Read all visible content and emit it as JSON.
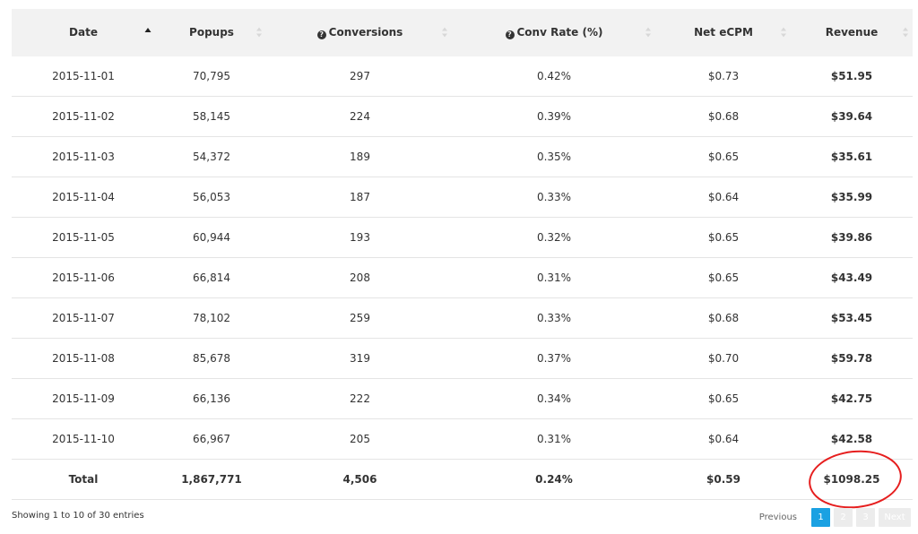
{
  "table": {
    "headers": [
      {
        "label": "Date",
        "help": false,
        "sort": "asc"
      },
      {
        "label": "Popups",
        "help": false,
        "sort": "both"
      },
      {
        "label": "Conversions",
        "help": true,
        "sort": "both"
      },
      {
        "label": "Conv Rate (%)",
        "help": true,
        "sort": "both"
      },
      {
        "label": "Net eCPM",
        "help": false,
        "sort": "both"
      },
      {
        "label": "Revenue",
        "help": false,
        "sort": "both"
      }
    ],
    "rows": [
      [
        "2015-11-01",
        "70,795",
        "297",
        "0.42%",
        "$0.73",
        "$51.95"
      ],
      [
        "2015-11-02",
        "58,145",
        "224",
        "0.39%",
        "$0.68",
        "$39.64"
      ],
      [
        "2015-11-03",
        "54,372",
        "189",
        "0.35%",
        "$0.65",
        "$35.61"
      ],
      [
        "2015-11-04",
        "56,053",
        "187",
        "0.33%",
        "$0.64",
        "$35.99"
      ],
      [
        "2015-11-05",
        "60,944",
        "193",
        "0.32%",
        "$0.65",
        "$39.86"
      ],
      [
        "2015-11-06",
        "66,814",
        "208",
        "0.31%",
        "$0.65",
        "$43.49"
      ],
      [
        "2015-11-07",
        "78,102",
        "259",
        "0.33%",
        "$0.68",
        "$53.45"
      ],
      [
        "2015-11-08",
        "85,678",
        "319",
        "0.37%",
        "$0.70",
        "$59.78"
      ],
      [
        "2015-11-09",
        "66,136",
        "222",
        "0.34%",
        "$0.65",
        "$42.75"
      ],
      [
        "2015-11-10",
        "66,967",
        "205",
        "0.31%",
        "$0.64",
        "$42.58"
      ]
    ],
    "total": [
      "Total",
      "1,867,771",
      "4,506",
      "0.24%",
      "$0.59",
      "$1098.25"
    ]
  },
  "footer": {
    "info": "Showing 1 to 10 of 30 entries",
    "pagination": {
      "previous": "Previous",
      "pages": [
        "1",
        "2",
        "3"
      ],
      "active_page": "1",
      "next": "Next"
    }
  },
  "colors": {
    "header_bg": "#f2f2f2",
    "active_page": "#1ba1e2",
    "highlight_circle": "#e61e1e"
  }
}
